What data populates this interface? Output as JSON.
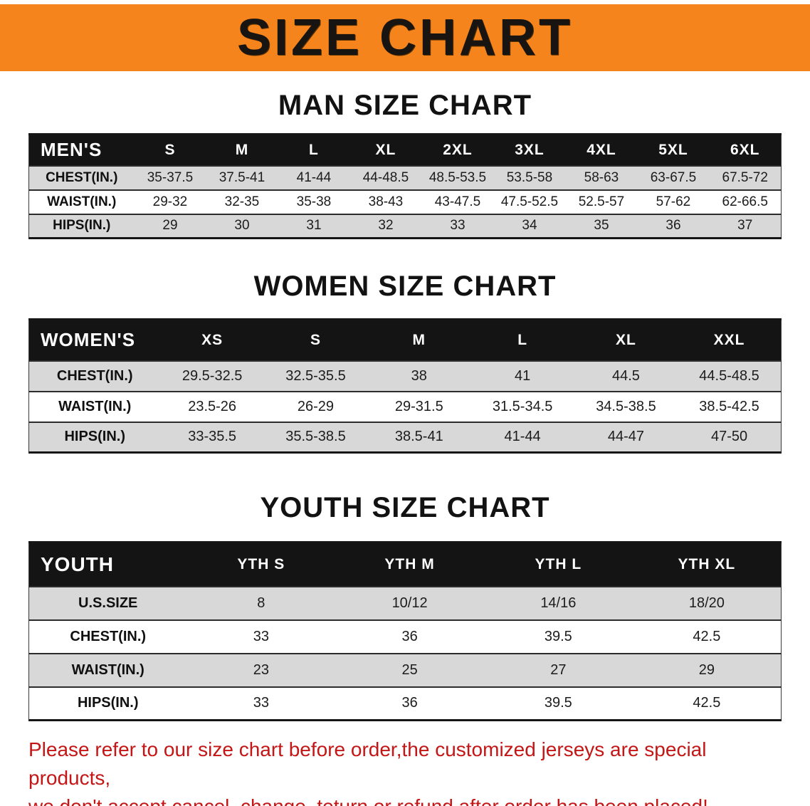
{
  "banner": {
    "title": "SIZE CHART",
    "bg_color": "#F5841C"
  },
  "sections": [
    {
      "id": "men",
      "heading": "MAN SIZE CHART",
      "table": {
        "label": "MEN'S",
        "columns": [
          "S",
          "M",
          "L",
          "XL",
          "2XL",
          "3XL",
          "4XL",
          "5XL",
          "6XL"
        ],
        "rows": [
          {
            "label": "CHEST(IN.)",
            "values": [
              "35-37.5",
              "37.5-41",
              "41-44",
              "44-48.5",
              "48.5-53.5",
              "53.5-58",
              "58-63",
              "63-67.5",
              "67.5-72"
            ]
          },
          {
            "label": "WAIST(IN.)",
            "values": [
              "29-32",
              "32-35",
              "35-38",
              "38-43",
              "43-47.5",
              "47.5-52.5",
              "52.5-57",
              "57-62",
              "62-66.5"
            ]
          },
          {
            "label": "HIPS(IN.)",
            "values": [
              "29",
              "30",
              "31",
              "32",
              "33",
              "34",
              "35",
              "36",
              "37"
            ]
          }
        ]
      }
    },
    {
      "id": "women",
      "heading": "WOMEN SIZE CHART",
      "table": {
        "label": "WOMEN'S",
        "columns": [
          "XS",
          "S",
          "M",
          "L",
          "XL",
          "XXL"
        ],
        "rows": [
          {
            "label": "CHEST(IN.)",
            "values": [
              "29.5-32.5",
              "32.5-35.5",
              "38",
              "41",
              "44.5",
              "44.5-48.5"
            ]
          },
          {
            "label": "WAIST(IN.)",
            "values": [
              "23.5-26",
              "26-29",
              "29-31.5",
              "31.5-34.5",
              "34.5-38.5",
              "38.5-42.5"
            ]
          },
          {
            "label": "HIPS(IN.)",
            "values": [
              "33-35.5",
              "35.5-38.5",
              "38.5-41",
              "41-44",
              "44-47",
              "47-50"
            ]
          }
        ]
      }
    },
    {
      "id": "youth",
      "heading": "YOUTH SIZE CHART",
      "table": {
        "label": "YOUTH",
        "columns": [
          "YTH S",
          "YTH M",
          "YTH L",
          "YTH XL"
        ],
        "rows": [
          {
            "label": "U.S.SIZE",
            "values": [
              "8",
              "10/12",
              "14/16",
              "18/20"
            ]
          },
          {
            "label": "CHEST(IN.)",
            "values": [
              "33",
              "36",
              "39.5",
              "42.5"
            ]
          },
          {
            "label": "WAIST(IN.)",
            "values": [
              "23",
              "25",
              "27",
              "29"
            ]
          },
          {
            "label": "HIPS(IN.)",
            "values": [
              "33",
              "36",
              "39.5",
              "42.5"
            ]
          }
        ]
      }
    }
  ],
  "disclaimer": {
    "line1": "Please refer to our size chart before order,the customized jerseys are special products,",
    "line2": "we don't accept cancel, change, teturn or refund after order has been placed!",
    "color": "#C41616"
  }
}
